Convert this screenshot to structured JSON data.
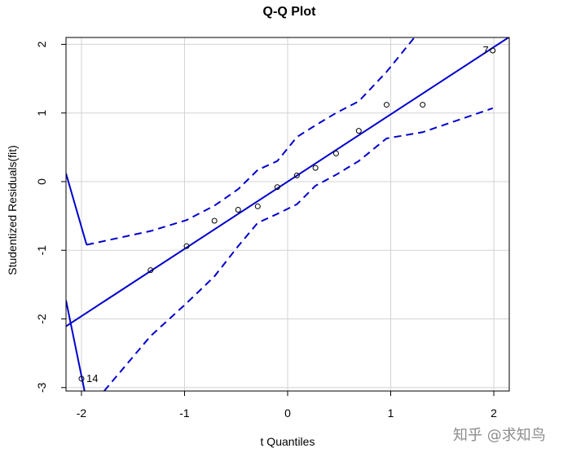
{
  "chart_data": {
    "type": "scatter",
    "title": "Q-Q Plot",
    "xlabel": "t Quantiles",
    "ylabel": "Studentized Residuals(fit)",
    "xlim": [
      -2.15,
      2.15
    ],
    "ylim": [
      -3.05,
      2.1
    ],
    "x_ticks": [
      -2,
      -1,
      0,
      1,
      2
    ],
    "y_ticks": [
      -3,
      -2,
      -1,
      0,
      1,
      2
    ],
    "x_tick_labels": [
      "-2",
      "-1",
      "0",
      "1",
      "2"
    ],
    "y_tick_labels": [
      "-3",
      "-2",
      "-1",
      "0",
      "1",
      "2"
    ],
    "grid": true,
    "points": [
      {
        "x": -2.0,
        "y": -2.87,
        "label": "14"
      },
      {
        "x": -1.33,
        "y": -1.29
      },
      {
        "x": -0.98,
        "y": -0.94
      },
      {
        "x": -0.71,
        "y": -0.57
      },
      {
        "x": -0.48,
        "y": -0.41
      },
      {
        "x": -0.29,
        "y": -0.36
      },
      {
        "x": -0.1,
        "y": -0.08
      },
      {
        "x": 0.09,
        "y": 0.09
      },
      {
        "x": 0.27,
        "y": 0.2
      },
      {
        "x": 0.47,
        "y": 0.41
      },
      {
        "x": 0.69,
        "y": 0.74
      },
      {
        "x": 0.96,
        "y": 1.12
      },
      {
        "x": 1.31,
        "y": 1.12
      },
      {
        "x": 1.99,
        "y": 1.91,
        "label": "7"
      }
    ],
    "reference_line": {
      "intercept": 0.0,
      "slope": 0.98
    },
    "upper_band": {
      "x": [
        -1.95,
        -1.33,
        -0.98,
        -0.71,
        -0.48,
        -0.29,
        -0.1,
        0.09,
        0.27,
        0.47,
        0.69,
        0.96,
        1.23
      ],
      "y": [
        -0.92,
        -0.72,
        -0.56,
        -0.35,
        -0.11,
        0.17,
        0.3,
        0.65,
        0.82,
        1.0,
        1.17,
        1.6,
        2.1
      ]
    },
    "lower_band": {
      "x": [
        -1.78,
        -1.33,
        -0.98,
        -0.71,
        -0.48,
        -0.29,
        -0.1,
        0.09,
        0.27,
        0.47,
        0.69,
        0.96,
        1.31,
        1.99
      ],
      "y": [
        -3.05,
        -2.25,
        -1.77,
        -1.38,
        -0.94,
        -0.6,
        -0.47,
        -0.33,
        -0.06,
        0.1,
        0.3,
        0.63,
        0.72,
        1.07
      ]
    },
    "left_upper_tail": {
      "x": [
        -2.15,
        -1.95
      ],
      "y": [
        0.12,
        -0.92
      ]
    },
    "left_lower_tail": {
      "x": [
        -2.15,
        -1.97
      ],
      "y": [
        -1.73,
        -3.05
      ]
    },
    "colors": {
      "line": "#0000cd",
      "grid": "#d3d3d3",
      "points": "#000000"
    }
  },
  "watermark": "知乎 @求知鸟"
}
